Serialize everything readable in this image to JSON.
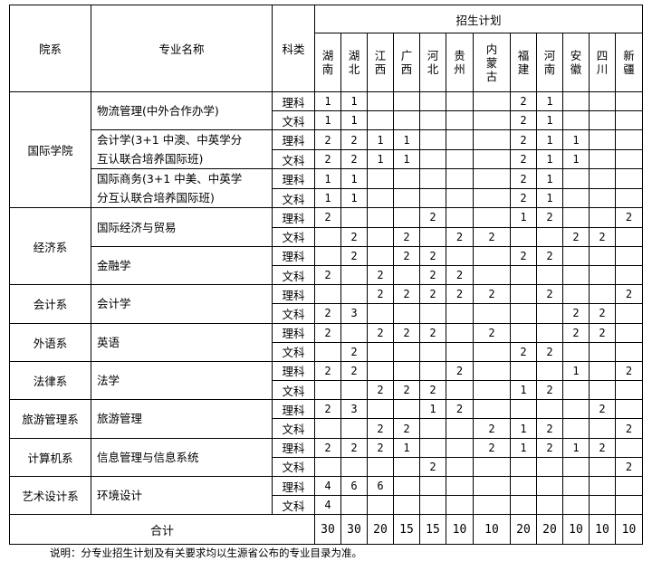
{
  "header": {
    "department": "院系",
    "major": "专业名称",
    "category": "科类",
    "plan": "招生计划",
    "provinces": [
      "湖南",
      "湖北",
      "江西",
      "广西",
      "河北",
      "贵州",
      "内蒙古",
      "福建",
      "河南",
      "安徽",
      "四川",
      "新疆"
    ]
  },
  "departments": [
    {
      "name": "国际学院",
      "majors": [
        {
          "name": "物流管理(中外合作办学)",
          "rows": [
            {
              "category": "理科",
              "values": [
                "1",
                "1",
                "",
                "",
                "",
                "",
                "",
                "2",
                "1",
                "",
                "",
                ""
              ]
            },
            {
              "category": "文科",
              "values": [
                "1",
                "1",
                "",
                "",
                "",
                "",
                "",
                "2",
                "1",
                "",
                "",
                ""
              ]
            }
          ]
        },
        {
          "name": "会计学(3+1 中澳、中英学分\n互认联合培养国际班)",
          "rows": [
            {
              "category": "理科",
              "values": [
                "2",
                "2",
                "1",
                "1",
                "",
                "",
                "",
                "2",
                "1",
                "1",
                "",
                ""
              ]
            },
            {
              "category": "文科",
              "values": [
                "2",
                "2",
                "1",
                "1",
                "",
                "",
                "",
                "2",
                "1",
                "1",
                "",
                ""
              ]
            }
          ]
        },
        {
          "name": "国际商务(3+1 中美、中英学\n分互认联合培养国际班)",
          "rows": [
            {
              "category": "理科",
              "values": [
                "1",
                "1",
                "",
                "",
                "",
                "",
                "",
                "2",
                "1",
                "",
                "",
                ""
              ]
            },
            {
              "category": "文科",
              "values": [
                "1",
                "1",
                "",
                "",
                "",
                "",
                "",
                "2",
                "1",
                "",
                "",
                ""
              ]
            }
          ]
        }
      ]
    },
    {
      "name": "经济系",
      "majors": [
        {
          "name": "国际经济与贸易",
          "rows": [
            {
              "category": "理科",
              "values": [
                "2",
                "",
                "",
                "",
                "2",
                "",
                "",
                "1",
                "2",
                "",
                "",
                "2"
              ]
            },
            {
              "category": "文科",
              "values": [
                "",
                "2",
                "",
                "2",
                "",
                "2",
                "2",
                "",
                "",
                "2",
                "2",
                ""
              ]
            }
          ]
        },
        {
          "name": "金融学",
          "rows": [
            {
              "category": "理科",
              "values": [
                "",
                "2",
                "",
                "2",
                "2",
                "",
                "",
                "2",
                "2",
                "",
                "",
                ""
              ]
            },
            {
              "category": "文科",
              "values": [
                "2",
                "",
                "2",
                "",
                "2",
                "2",
                "",
                "",
                "",
                "",
                "",
                ""
              ]
            }
          ]
        }
      ]
    },
    {
      "name": "会计系",
      "majors": [
        {
          "name": "会计学",
          "rows": [
            {
              "category": "理科",
              "values": [
                "",
                "",
                "2",
                "2",
                "2",
                "2",
                "2",
                "",
                "2",
                "",
                "",
                "2"
              ]
            },
            {
              "category": "文科",
              "values": [
                "2",
                "3",
                "",
                "",
                "",
                "",
                "",
                "",
                "",
                "2",
                "2",
                ""
              ]
            }
          ]
        }
      ]
    },
    {
      "name": "外语系",
      "majors": [
        {
          "name": "英语",
          "rows": [
            {
              "category": "理科",
              "values": [
                "2",
                "",
                "2",
                "2",
                "2",
                "",
                "2",
                "",
                "",
                "2",
                "2",
                ""
              ]
            },
            {
              "category": "文科",
              "values": [
                "",
                "2",
                "",
                "",
                "",
                "",
                "",
                "2",
                "2",
                "",
                "",
                ""
              ]
            }
          ]
        }
      ]
    },
    {
      "name": "法律系",
      "majors": [
        {
          "name": "法学",
          "rows": [
            {
              "category": "理科",
              "values": [
                "2",
                "2",
                "",
                "",
                "",
                "2",
                "",
                "",
                "",
                "1",
                "",
                "2"
              ]
            },
            {
              "category": "文科",
              "values": [
                "",
                "",
                "2",
                "2",
                "2",
                "",
                "",
                "1",
                "2",
                "",
                "",
                ""
              ]
            }
          ]
        }
      ]
    },
    {
      "name": "旅游管理系",
      "majors": [
        {
          "name": "旅游管理",
          "rows": [
            {
              "category": "理科",
              "values": [
                "2",
                "3",
                "",
                "",
                "1",
                "2",
                "",
                "",
                "",
                "",
                "2",
                ""
              ]
            },
            {
              "category": "文科",
              "values": [
                "",
                "",
                "2",
                "2",
                "",
                "",
                "2",
                "1",
                "2",
                "",
                "",
                "2"
              ]
            }
          ]
        }
      ]
    },
    {
      "name": "计算机系",
      "majors": [
        {
          "name": "信息管理与信息系统",
          "rows": [
            {
              "category": "理科",
              "values": [
                "2",
                "2",
                "2",
                "1",
                "",
                "",
                "2",
                "1",
                "2",
                "1",
                "2",
                ""
              ]
            },
            {
              "category": "文科",
              "values": [
                "",
                "",
                "",
                "",
                "2",
                "",
                "",
                "",
                "",
                "",
                "",
                "2"
              ]
            }
          ]
        }
      ]
    },
    {
      "name": "艺术设计系",
      "majors": [
        {
          "name": "环境设计",
          "rows": [
            {
              "category": "理科",
              "values": [
                "4",
                "6",
                "6",
                "",
                "",
                "",
                "",
                "",
                "",
                "",
                "",
                ""
              ]
            },
            {
              "category": "文科",
              "values": [
                "4",
                "",
                "",
                "",
                "",
                "",
                "",
                "",
                "",
                "",
                "",
                ""
              ]
            }
          ]
        }
      ]
    }
  ],
  "total": {
    "label": "合计",
    "values": [
      "30",
      "30",
      "20",
      "15",
      "15",
      "10",
      "10",
      "20",
      "20",
      "10",
      "10",
      "10"
    ]
  },
  "note": "说明：分专业招生计划及有关要求均以生源省公布的专业目录为准。"
}
